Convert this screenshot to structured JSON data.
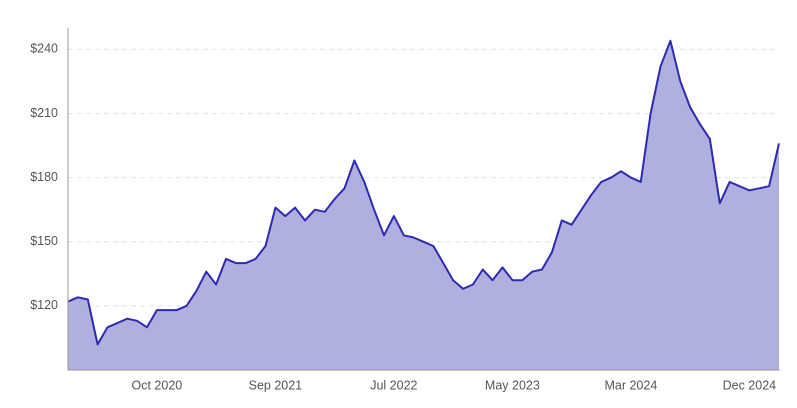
{
  "chart_data": {
    "type": "area",
    "categories": [
      null,
      null,
      null,
      null,
      null,
      null,
      null,
      null,
      null,
      "Oct 2020",
      null,
      null,
      null,
      null,
      null,
      null,
      null,
      null,
      null,
      null,
      null,
      "Sep 2021",
      null,
      null,
      null,
      null,
      null,
      null,
      null,
      null,
      null,
      null,
      null,
      "Jul 2022",
      null,
      null,
      null,
      null,
      null,
      null,
      null,
      null,
      null,
      null,
      null,
      "May 2023",
      null,
      null,
      null,
      null,
      null,
      null,
      null,
      null,
      null,
      null,
      null,
      "Mar 2024",
      null,
      null,
      null,
      null,
      null,
      null,
      null,
      null,
      null,
      null,
      null,
      "Dec 2024",
      null,
      null,
      null
    ],
    "values": [
      122,
      124,
      123,
      102,
      110,
      112,
      114,
      113,
      110,
      118,
      118,
      118,
      120,
      127,
      136,
      130,
      142,
      140,
      140,
      142,
      148,
      166,
      162,
      166,
      160,
      165,
      164,
      170,
      175,
      188,
      178,
      165,
      153,
      162,
      153,
      152,
      150,
      148,
      140,
      132,
      128,
      130,
      137,
      132,
      138,
      132,
      132,
      136,
      137,
      145,
      160,
      158,
      165,
      172,
      178,
      180,
      183,
      180,
      178,
      210,
      232,
      244,
      225,
      213,
      205,
      198,
      168,
      178,
      176,
      174,
      175,
      176,
      196
    ],
    "color": "#2b2bb0",
    "fill": "#b0b0e0",
    "ylim": [
      90,
      250
    ],
    "yticks": [
      {
        "value": 120,
        "label": "$120"
      },
      {
        "value": 150,
        "label": "$150"
      },
      {
        "value": 180,
        "label": "$180"
      },
      {
        "value": 210,
        "label": "$210"
      },
      {
        "value": 240,
        "label": "$240"
      }
    ],
    "grid": true
  }
}
